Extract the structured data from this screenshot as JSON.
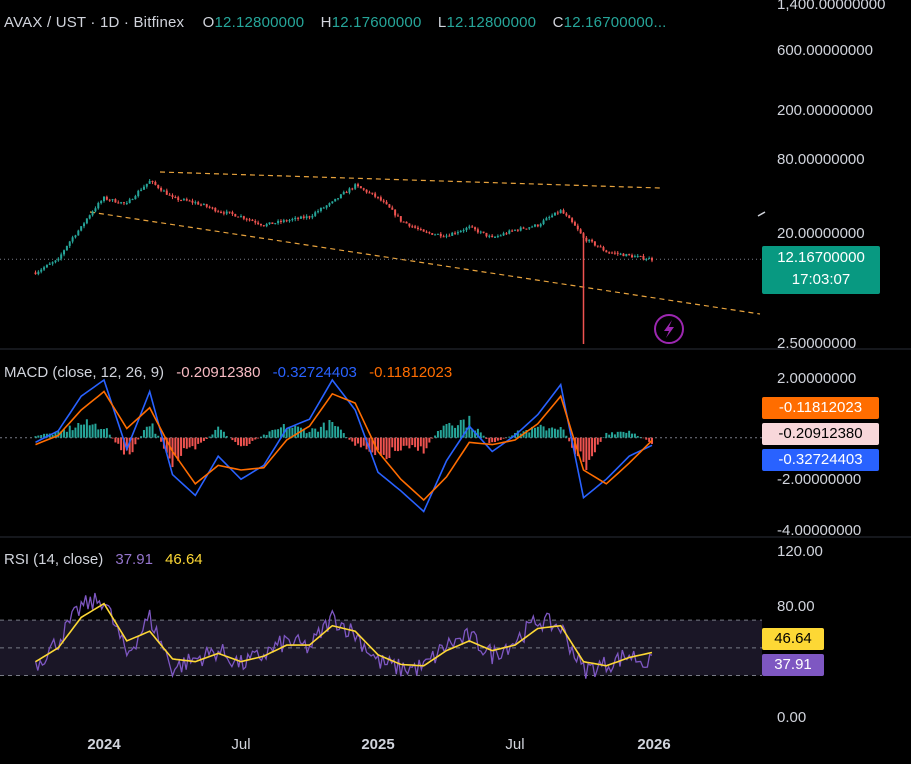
{
  "header": {
    "symbol": "AVAX / UST · 1D · Bitfinex",
    "open_label": "O",
    "open": "12.12800000",
    "high_label": "H",
    "high": "12.17600000",
    "low_label": "L",
    "low": "12.12800000",
    "close_label": "C",
    "close": "12.16700000..."
  },
  "price_axis": {
    "ticks": [
      "1,400.00000000",
      "600.00000000",
      "200.00000000",
      "80.00000000",
      "20.00000000",
      "2.50000000"
    ],
    "last_price": "12.16700000",
    "countdown": "17:03:07",
    "scale": "log"
  },
  "macd": {
    "label": "MACD (close, 12, 26, 9)",
    "hist": "-0.20912380",
    "macd": "-0.32724403",
    "signal": "-0.11812023",
    "ticks": [
      "2.00000000",
      "-2.00000000",
      "-4.00000000"
    ],
    "badge_signal": "-0.11812023",
    "badge_hist": "-0.20912380",
    "badge_macd": "-0.32724403"
  },
  "rsi": {
    "label": "RSI (14, close)",
    "rsi": "37.91",
    "ma": "46.64",
    "ticks": [
      "120.00",
      "80.00",
      "0.00"
    ],
    "badge_ma": "46.64",
    "badge_rsi": "37.91"
  },
  "time_axis": {
    "labels": [
      "2024",
      "Jul",
      "2025",
      "Jul",
      "2026"
    ]
  },
  "colors": {
    "up": "#26a69a",
    "down": "#ef5350",
    "macd_line": "#2962ff",
    "signal_line": "#ff6d00",
    "rsi_line": "#7e57c2",
    "rsi_ma": "#fdd835",
    "trendline": "#e8a33d",
    "alert": "#9c27b0"
  },
  "chart_data": [
    {
      "type": "line",
      "title": "AVAX / UST · 1D · Bitfinex",
      "yscale": "log",
      "ylim": [
        2.5,
        1400
      ],
      "x": [
        "2023-10",
        "2023-11",
        "2023-12",
        "2024-01",
        "2024-02",
        "2024-03",
        "2024-04",
        "2024-05",
        "2024-06",
        "2024-07",
        "2024-08",
        "2024-09",
        "2024-10",
        "2024-11",
        "2024-12",
        "2025-01",
        "2025-02",
        "2025-03",
        "2025-04",
        "2025-05",
        "2025-06",
        "2025-07",
        "2025-08",
        "2025-09",
        "2025-10",
        "2025-11",
        "2025-12",
        "2026-01"
      ],
      "series": [
        {
          "name": "AVAX / UST",
          "values": [
            9.5,
            12,
            22,
            38,
            34,
            52,
            38,
            35,
            30,
            27,
            23,
            25,
            27,
            35,
            48,
            38,
            25,
            20,
            19,
            22,
            18,
            21,
            23,
            30,
            18,
            14,
            13,
            12.17
          ]
        }
      ]
    },
    {
      "type": "line",
      "title": "MACD (close, 12, 26, 9)",
      "ylim": [
        -4,
        2.5
      ],
      "x": [
        "2023-10",
        "2023-11",
        "2023-12",
        "2024-01",
        "2024-02",
        "2024-03",
        "2024-04",
        "2024-05",
        "2024-06",
        "2024-07",
        "2024-08",
        "2024-09",
        "2024-10",
        "2024-11",
        "2024-12",
        "2025-01",
        "2025-02",
        "2025-03",
        "2025-04",
        "2025-05",
        "2025-06",
        "2025-07",
        "2025-08",
        "2025-09",
        "2025-10",
        "2025-11",
        "2025-12",
        "2026-01"
      ],
      "series": [
        {
          "name": "MACD",
          "values": [
            -0.2,
            0.3,
            1.8,
            2.5,
            -0.5,
            2.0,
            -1.6,
            -2.5,
            -0.8,
            -1.8,
            -1.2,
            0.4,
            0.8,
            2.5,
            1.2,
            -1.5,
            -2.3,
            -3.2,
            -1.0,
            0.5,
            -0.6,
            0.1,
            1.0,
            2.3,
            -2.6,
            -1.8,
            -0.8,
            -0.33
          ]
        },
        {
          "name": "Signal",
          "values": [
            -0.3,
            0.1,
            1.2,
            2.0,
            0.4,
            1.3,
            -0.6,
            -2.0,
            -1.2,
            -1.4,
            -1.3,
            -0.1,
            0.5,
            1.9,
            1.5,
            -0.6,
            -1.8,
            -2.7,
            -1.7,
            -0.2,
            -0.3,
            -0.1,
            0.6,
            1.8,
            -1.4,
            -2.0,
            -1.1,
            -0.12
          ]
        },
        {
          "name": "Histogram",
          "values": [
            0.1,
            0.2,
            0.6,
            0.5,
            -0.9,
            0.7,
            -1.0,
            -0.5,
            0.4,
            -0.4,
            0.1,
            0.5,
            0.3,
            0.6,
            -0.3,
            -0.9,
            -0.5,
            -0.5,
            0.7,
            0.7,
            -0.3,
            0.2,
            0.4,
            0.5,
            -1.2,
            0.2,
            0.3,
            -0.21
          ]
        }
      ]
    },
    {
      "type": "line",
      "title": "RSI (14, close)",
      "ylim": [
        0,
        120
      ],
      "x": [
        "2023-10",
        "2023-11",
        "2023-12",
        "2024-01",
        "2024-02",
        "2024-03",
        "2024-04",
        "2024-05",
        "2024-06",
        "2024-07",
        "2024-08",
        "2024-09",
        "2024-10",
        "2024-11",
        "2024-12",
        "2025-01",
        "2025-02",
        "2025-03",
        "2025-04",
        "2025-05",
        "2025-06",
        "2025-07",
        "2025-08",
        "2025-09",
        "2025-10",
        "2025-11",
        "2025-12",
        "2026-01"
      ],
      "series": [
        {
          "name": "RSI",
          "values": [
            38,
            55,
            80,
            85,
            45,
            72,
            35,
            42,
            48,
            38,
            45,
            55,
            50,
            72,
            60,
            40,
            35,
            36,
            52,
            58,
            45,
            55,
            70,
            65,
            34,
            38,
            45,
            37.91
          ]
        },
        {
          "name": "RSI MA",
          "values": [
            40,
            50,
            72,
            82,
            55,
            62,
            42,
            40,
            46,
            40,
            44,
            52,
            52,
            66,
            62,
            45,
            38,
            37,
            48,
            55,
            48,
            52,
            64,
            66,
            40,
            37,
            43,
            46.64
          ]
        }
      ]
    }
  ]
}
